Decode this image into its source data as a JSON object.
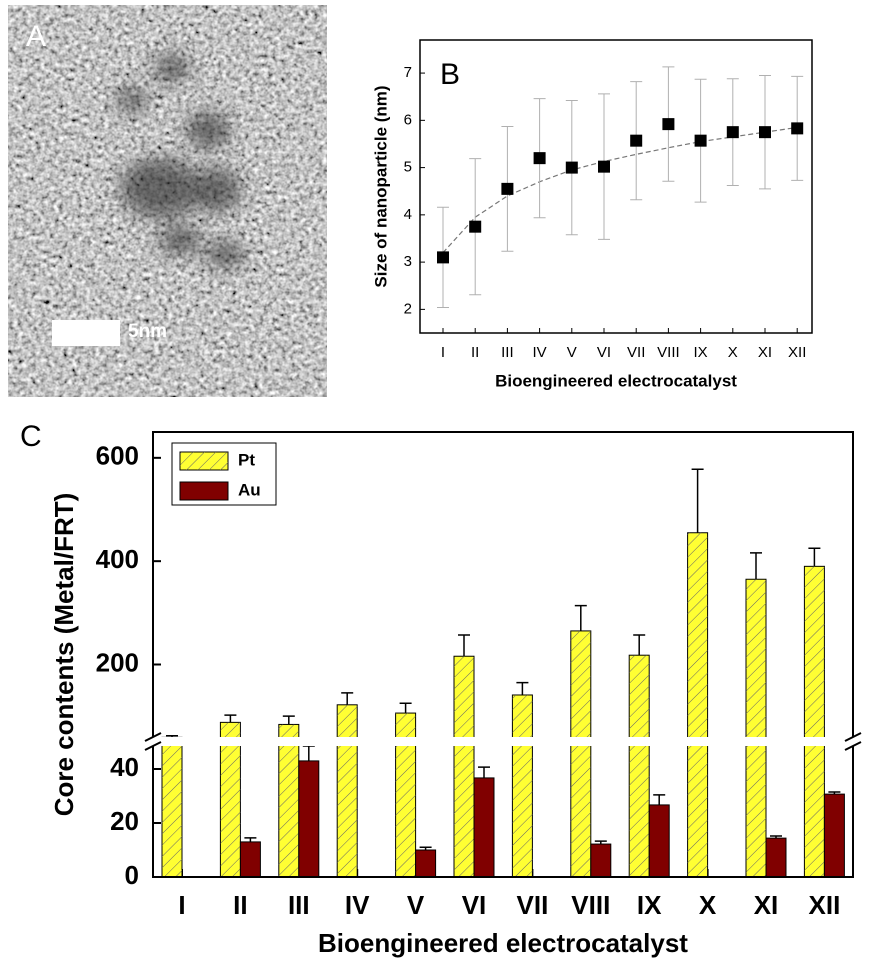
{
  "image_panel": {
    "label": "A",
    "scale_bar": "5nm"
  },
  "chart_data": [
    {
      "type": "scatter",
      "panel": "B",
      "xlabel": "Bioengineered electrocatalyst",
      "ylabel": "Size of nanoparticle (nm)",
      "categories": [
        "I",
        "II",
        "III",
        "IV",
        "V",
        "VI",
        "VII",
        "VIII",
        "IX",
        "X",
        "XI",
        "XII"
      ],
      "values": [
        3.1,
        3.75,
        4.55,
        5.2,
        5.0,
        5.02,
        5.57,
        5.92,
        5.57,
        5.75,
        5.75,
        5.83
      ],
      "errors": [
        1.06,
        1.44,
        1.32,
        1.26,
        1.42,
        1.54,
        1.25,
        1.21,
        1.3,
        1.13,
        1.2,
        1.1
      ],
      "fit": [
        3.2,
        3.95,
        4.4,
        4.7,
        4.95,
        5.13,
        5.28,
        5.42,
        5.55,
        5.65,
        5.75,
        5.85
      ],
      "color": "#000000",
      "error_color": "#b0b0b0",
      "ylim": [
        1.5,
        7.7
      ],
      "yticks": [
        2,
        3,
        4,
        5,
        6,
        7
      ]
    },
    {
      "type": "broken-bar",
      "panel": "C",
      "xlabel": "Bioengineered electrocatalyst",
      "ylabel": "Core contents (Metal/FRT)",
      "categories": [
        "I",
        "II",
        "III",
        "IV",
        "V",
        "VI",
        "VII",
        "VIII",
        "IX",
        "X",
        "XI",
        "XII"
      ],
      "series": [
        {
          "name": "Pt",
          "color": "#ffff33",
          "hatch": true,
          "values": [
            59,
            88,
            84,
            122,
            106,
            216,
            141,
            265,
            218,
            455,
            365,
            390
          ],
          "errors": [
            3,
            14,
            16,
            23,
            19,
            41,
            24,
            49,
            39,
            123,
            51,
            35
          ]
        },
        {
          "name": "Au",
          "color": "#800000",
          "hatch": false,
          "values": [
            null,
            13,
            43,
            null,
            10,
            36.7,
            null,
            12.2,
            26.7,
            null,
            14.4,
            30.7
          ],
          "errors": [
            null,
            1.5,
            5.5,
            null,
            1,
            4,
            null,
            1.1,
            3.7,
            null,
            0.8,
            0.8
          ]
        }
      ],
      "ylim": [
        0,
        50
      ],
      "yticks": [
        0,
        20,
        40
      ],
      "ylim_upper": [
        50,
        650
      ],
      "yticks_upper": [
        200,
        400,
        600
      ],
      "legend": "upper-left"
    }
  ]
}
